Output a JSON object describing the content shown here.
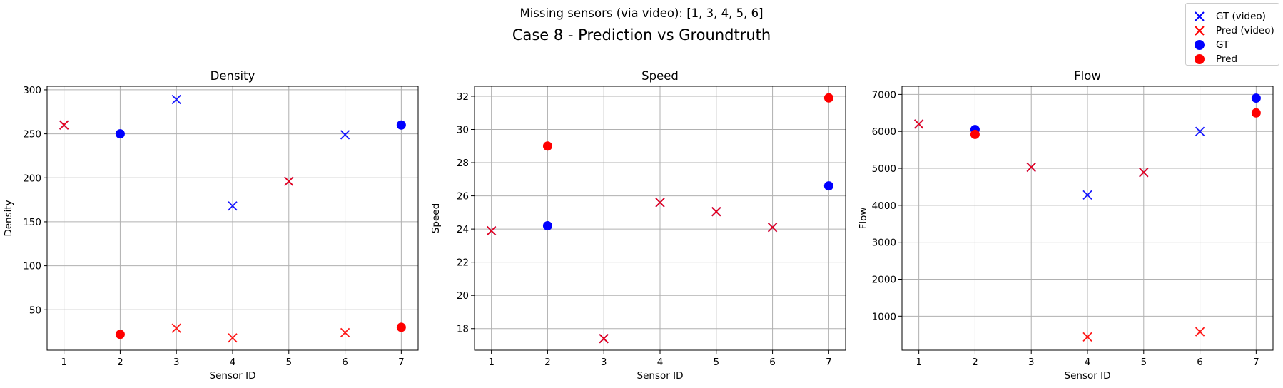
{
  "suptitle": "Missing sensors (via video): [1, 3, 4, 5, 6]",
  "title": "Case 8 - Prediction vs Groundtruth",
  "legend": {
    "placement": "top-right",
    "items": [
      {
        "label": "GT (video)",
        "marker": "x",
        "color": "#0000ff"
      },
      {
        "label": "Pred (video)",
        "marker": "x",
        "color": "#ff0000"
      },
      {
        "label": "GT",
        "marker": "o",
        "color": "#0000ff"
      },
      {
        "label": "Pred",
        "marker": "o",
        "color": "#ff0000"
      }
    ]
  },
  "chart_data": [
    {
      "type": "scatter",
      "title": "Density",
      "xlabel": "Sensor ID",
      "ylabel": "Density",
      "xlim": [
        0.7,
        7.3
      ],
      "ylim": [
        4,
        304
      ],
      "xticks": [
        1,
        2,
        3,
        4,
        5,
        6,
        7
      ],
      "yticks": [
        50,
        100,
        150,
        200,
        250,
        300
      ],
      "grid": true,
      "series": [
        {
          "name": "GT (video)",
          "marker": "x",
          "color": "#0000ff",
          "x": [
            1,
            3,
            4,
            5,
            6
          ],
          "y": [
            260,
            289,
            168,
            196,
            249
          ]
        },
        {
          "name": "Pred (video)",
          "marker": "x",
          "color": "#ff0000",
          "x": [
            1,
            3,
            4,
            5,
            6
          ],
          "y": [
            260,
            29,
            18,
            196,
            24
          ]
        },
        {
          "name": "GT",
          "marker": "o",
          "color": "#0000ff",
          "x": [
            2,
            7
          ],
          "y": [
            250,
            260
          ]
        },
        {
          "name": "Pred",
          "marker": "o",
          "color": "#ff0000",
          "x": [
            2,
            7
          ],
          "y": [
            22,
            30
          ]
        }
      ]
    },
    {
      "type": "scatter",
      "title": "Speed",
      "xlabel": "Sensor ID",
      "ylabel": "Speed",
      "xlim": [
        0.7,
        7.3
      ],
      "ylim": [
        16.7,
        32.6
      ],
      "xticks": [
        1,
        2,
        3,
        4,
        5,
        6,
        7
      ],
      "yticks": [
        18,
        20,
        22,
        24,
        26,
        28,
        30,
        32
      ],
      "grid": true,
      "series": [
        {
          "name": "GT (video)",
          "marker": "x",
          "color": "#0000ff",
          "x": [
            1,
            3,
            4,
            5,
            6
          ],
          "y": [
            23.9,
            17.4,
            25.6,
            25.05,
            24.1
          ]
        },
        {
          "name": "Pred (video)",
          "marker": "x",
          "color": "#ff0000",
          "x": [
            1,
            3,
            4,
            5,
            6
          ],
          "y": [
            23.9,
            17.4,
            25.6,
            25.05,
            24.1
          ]
        },
        {
          "name": "GT",
          "marker": "o",
          "color": "#0000ff",
          "x": [
            2,
            7
          ],
          "y": [
            24.2,
            26.6
          ]
        },
        {
          "name": "Pred",
          "marker": "o",
          "color": "#ff0000",
          "x": [
            2,
            7
          ],
          "y": [
            29.0,
            31.9
          ]
        }
      ]
    },
    {
      "type": "scatter",
      "title": "Flow",
      "xlabel": "Sensor ID",
      "ylabel": "Flow",
      "xlim": [
        0.7,
        7.3
      ],
      "ylim": [
        80,
        7220
      ],
      "xticks": [
        1,
        2,
        3,
        4,
        5,
        6,
        7
      ],
      "yticks": [
        1000,
        2000,
        3000,
        4000,
        5000,
        6000,
        7000
      ],
      "grid": true,
      "series": [
        {
          "name": "GT (video)",
          "marker": "x",
          "color": "#0000ff",
          "x": [
            1,
            3,
            4,
            5,
            6
          ],
          "y": [
            6200,
            5030,
            4280,
            4890,
            6000
          ]
        },
        {
          "name": "Pred (video)",
          "marker": "x",
          "color": "#ff0000",
          "x": [
            1,
            3,
            4,
            5,
            6
          ],
          "y": [
            6200,
            5030,
            440,
            4890,
            580
          ]
        },
        {
          "name": "GT",
          "marker": "o",
          "color": "#0000ff",
          "x": [
            2,
            7
          ],
          "y": [
            6050,
            6900
          ]
        },
        {
          "name": "Pred",
          "marker": "o",
          "color": "#ff0000",
          "x": [
            2,
            7
          ],
          "y": [
            5920,
            6500
          ]
        }
      ]
    }
  ]
}
